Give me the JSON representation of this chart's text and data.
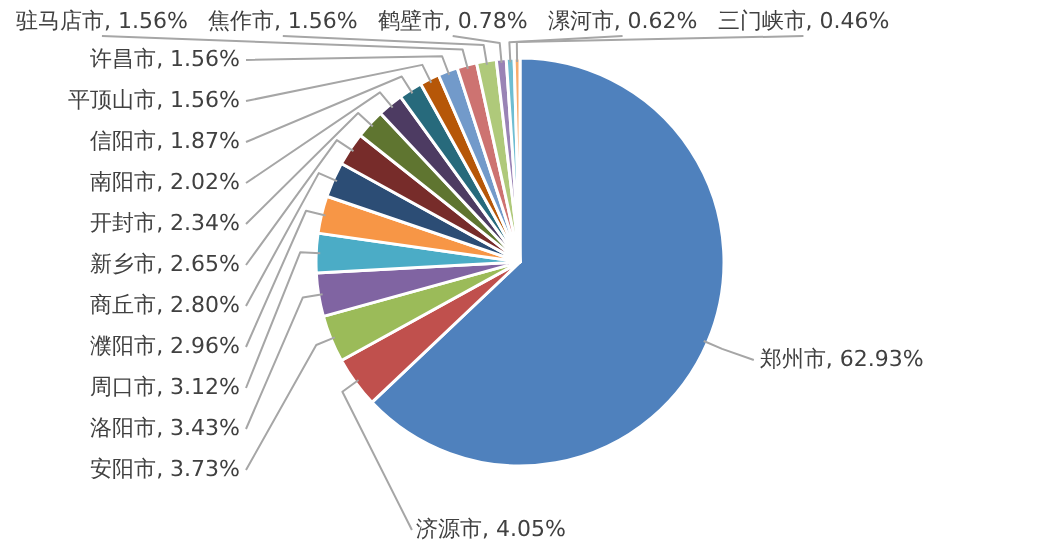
{
  "chart_data": {
    "type": "pie",
    "categories": [
      "郑州市",
      "济源市",
      "安阳市",
      "洛阳市",
      "周口市",
      "濮阳市",
      "商丘市",
      "新乡市",
      "开封市",
      "南阳市",
      "信阳市",
      "平顶山市",
      "许昌市",
      "驻马店市",
      "焦作市",
      "鹤壁市",
      "漯河市",
      "三门峡市"
    ],
    "values": [
      62.93,
      4.05,
      3.73,
      3.43,
      3.12,
      2.96,
      2.8,
      2.65,
      2.34,
      2.02,
      1.87,
      1.56,
      1.56,
      1.56,
      1.56,
      0.78,
      0.62,
      0.46
    ],
    "value_labels": [
      "62.93%",
      "4.05%",
      "3.73%",
      "3.43%",
      "3.12%",
      "2.96%",
      "2.80%",
      "2.65%",
      "2.34%",
      "2.02%",
      "1.87%",
      "1.56%",
      "1.56%",
      "1.56%",
      "1.56%",
      "0.78%",
      "0.62%",
      "0.46%"
    ],
    "colors": [
      "#4f81bd",
      "#c0504d",
      "#9bbb59",
      "#8064a2",
      "#4bacc6",
      "#f79646",
      "#2c4d75",
      "#772c2a",
      "#5f7530",
      "#4d3b62",
      "#276a7c",
      "#b65708",
      "#729aca",
      "#cd7371",
      "#afc97a",
      "#9983b5",
      "#6fbdd1",
      "#f9ab6b"
    ]
  }
}
